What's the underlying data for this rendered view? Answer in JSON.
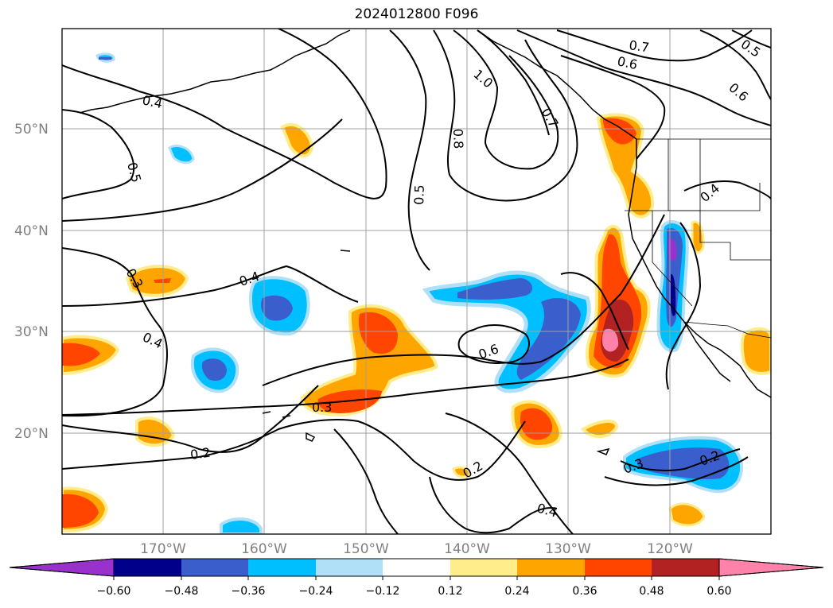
{
  "title": "2024012800 F096",
  "colors": {
    "purple": "#9932cc",
    "navy": "#00008b",
    "royal": "#3a5fcd",
    "cyan": "#00bfff",
    "lightblue": "#b0e0f8",
    "white": "#ffffff",
    "lightyellow": "#ffec8b",
    "orange": "#ffa500",
    "redorange": "#ff4500",
    "firebrick": "#b22222",
    "pink": "#ff82ab"
  },
  "lat_labels": [
    "50°N",
    "40°N",
    "30°N",
    "20°N"
  ],
  "lon_labels": [
    "170°W",
    "160°W",
    "150°W",
    "140°W",
    "130°W",
    "120°W"
  ],
  "colorbar": {
    "ticks": [
      "−0.60",
      "−0.48",
      "−0.36",
      "−0.24",
      "−0.12",
      "0.12",
      "0.24",
      "0.36",
      "0.48",
      "0.60"
    ]
  },
  "contour_labels": [
    {
      "text": "0.4"
    },
    {
      "text": "0.5"
    },
    {
      "text": "0.3"
    },
    {
      "text": "0.4"
    },
    {
      "text": "0.4"
    },
    {
      "text": "0.2"
    },
    {
      "text": "0.3"
    },
    {
      "text": "0.5"
    },
    {
      "text": "0.8"
    },
    {
      "text": "1.0"
    },
    {
      "text": "0.7"
    },
    {
      "text": "0.7"
    },
    {
      "text": "0.6"
    },
    {
      "text": "0.5"
    },
    {
      "text": "0.6"
    },
    {
      "text": "0.6"
    },
    {
      "text": "0.4"
    },
    {
      "text": "0.3"
    },
    {
      "text": "0.2"
    },
    {
      "text": "0.2"
    },
    {
      "text": "0.4"
    }
  ]
}
